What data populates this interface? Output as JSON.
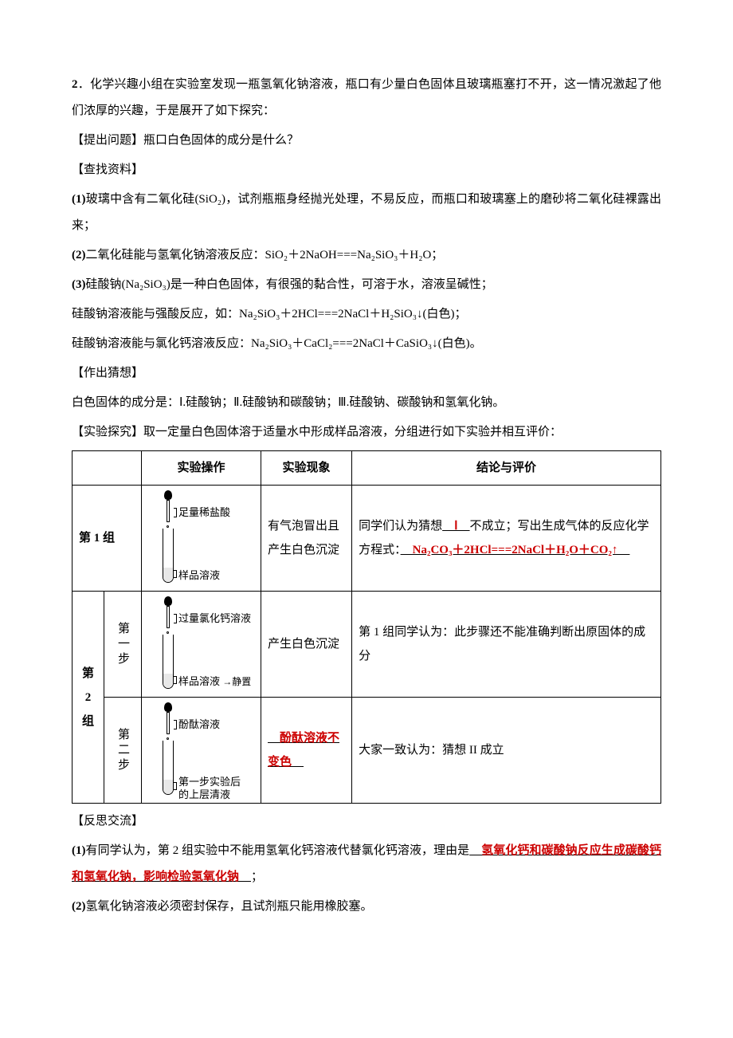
{
  "q_num": "2",
  "q_text": "．化学兴趣小组在实验室发现一瓶氢氧化钠溶液，瓶口有少量白色固体且玻璃瓶塞打不开，这一情况激起了他们浓厚的兴趣，于是展开了如下探究：",
  "s1_label": "【提出问题】",
  "s1_text": "瓶口白色固体的成分是什么？",
  "s2_label": "【查找资料】",
  "res1_pre": "(1)",
  "res1": "玻璃中含有二氧化硅(SiO₂)，试剂瓶瓶身经抛光处理，不易反应，而瓶口和玻璃塞上的磨砂将二氧化硅裸露出来；",
  "res2_pre": "(2)",
  "res2": "二氧化硅能与氢氧化钠溶液反应：SiO₂＋2NaOH===Na₂SiO₃＋H₂O；",
  "res3_pre": "(3)",
  "res3": "硅酸钠(Na₂SiO₃)是一种白色固体，有很强的黏合性，可溶于水，溶液呈碱性；",
  "res3b": "硅酸钠溶液能与强酸反应，如：Na₂SiO₃＋2HCl===2NaCl＋H₂SiO₃↓(白色)；",
  "res3c": "硅酸钠溶液能与氯化钙溶液反应：Na₂SiO₃＋CaCl₂===2NaCl＋CaSiO₃↓(白色)。",
  "s3_label": "【作出猜想】",
  "hyp": "白色固体的成分是：Ⅰ.硅酸钠；Ⅱ.硅酸钠和碳酸钠；Ⅲ.硅酸钠、碳酸钠和氢氧化钠。",
  "s4_label": "【实验探究】",
  "s4_text": "取一定量白色固体溶于适量水中形成样品溶液，分组进行如下实验并相互评价：",
  "table": {
    "headers": [
      "",
      "实验操作",
      "实验现象",
      "结论与评价"
    ],
    "g1_label": "第 1 组",
    "g1_reagent": "足量稀盐酸",
    "g1_sample": "样品溶液",
    "g1_phen": "有气泡冒出且产生白色沉淀",
    "g1_conc_a": "同学们认为猜想",
    "g1_conc_ans1": "　Ⅰ　",
    "g1_conc_b": "不成立；写出生成气体的反应化学方程式：",
    "g1_conc_ans2": "　Na₂CO₃＋2HCl===2NaCl＋H₂O＋CO₂↑　",
    "g2_label": "第\n2\n组",
    "g2_s1_label": "第一步",
    "g2_s1_reagent": "过量氯化钙溶液",
    "g2_s1_sample": "样品溶液",
    "g2_s1_arrow": "静置",
    "g2_s1_phen": "产生白色沉淀",
    "g2_s1_conc": "第 1 组同学认为：此步骤还不能准确判断出原固体的成分",
    "g2_s2_label": "第二步",
    "g2_s2_reagent": "酚酞溶液",
    "g2_s2_sample": "第一步实验后\n的上层清液",
    "g2_s2_phen_ans": "　酚酞溶液不变色　",
    "g2_s2_conc": "大家一致认为：猜想 II 成立"
  },
  "s5_label": "【反思交流】",
  "ref1_pre": "(1)",
  "ref1_a": "有同学认为，第 2 组实验中不能用氢氧化钙溶液代替氯化钙溶液，理由是",
  "ref1_ans": "　氢氧化钙和碳酸钠反应生成碳酸钙和氢氧化钠，影响检验氢氧化钠　",
  "ref1_b": "；",
  "ref2_pre": "(2)",
  "ref2": "氢氧化钠溶液必须密封保存，且试剂瓶只能用橡胶塞。",
  "colors": {
    "answer": "#cc0000",
    "text": "#000000",
    "bg": "#ffffff",
    "border": "#000000"
  }
}
